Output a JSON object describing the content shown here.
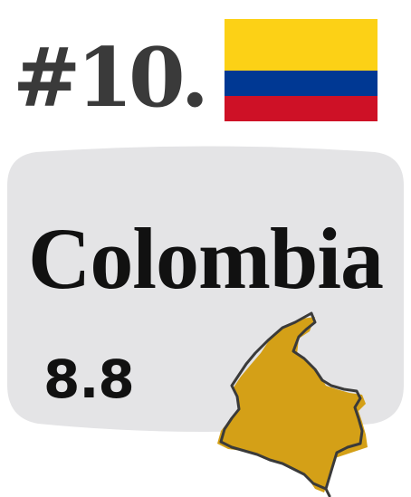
{
  "rank": "#10.",
  "country": "Colombia",
  "score": "8.8",
  "flag": {
    "name": "colombia-flag",
    "colors": [
      "#FCD116",
      "#003893",
      "#CE1126"
    ]
  },
  "colors": {
    "card_fill": "#e4e4e6",
    "map_fill": "#d4a017",
    "map_outline": "#3a3a3a",
    "rank_text": "#3a3a3a",
    "main_text": "#111111"
  }
}
